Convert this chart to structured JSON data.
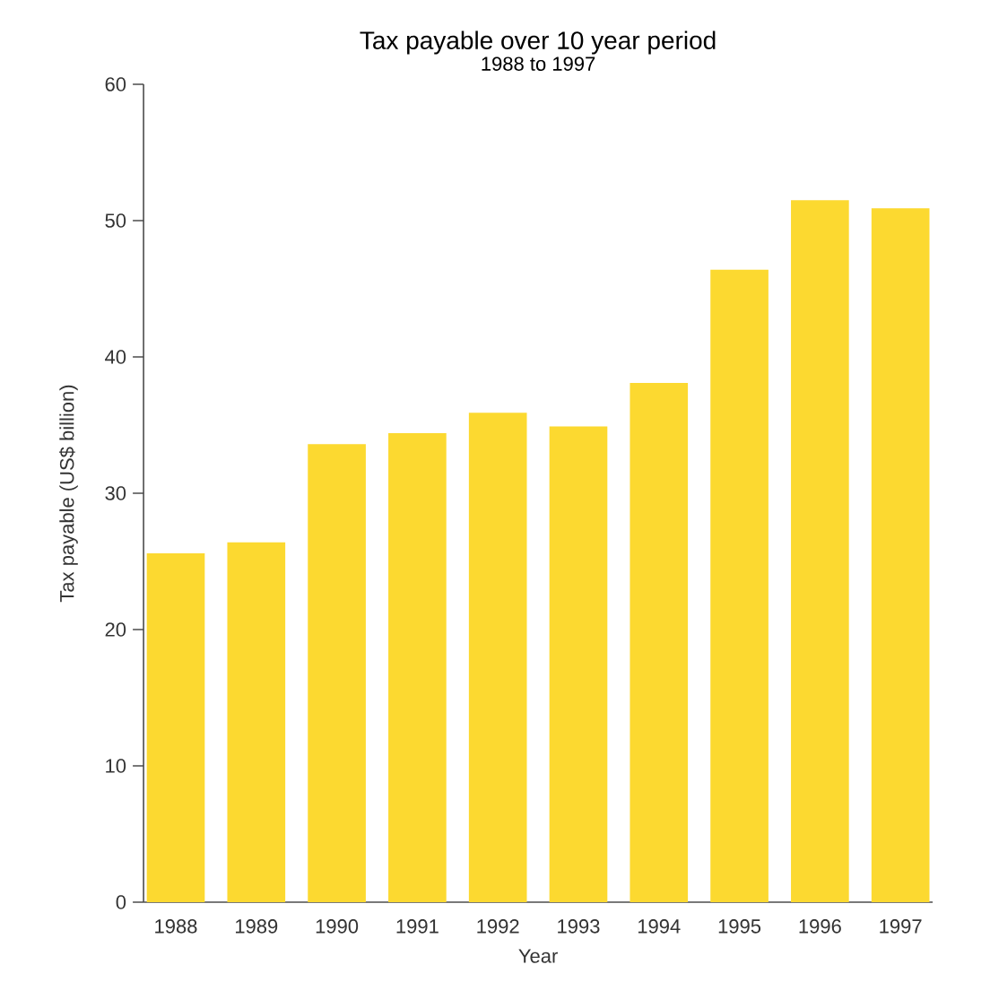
{
  "chart_data": {
    "type": "bar",
    "title": "Tax payable over 10 year period",
    "subtitle": "1988 to 1997",
    "xlabel": "Year",
    "ylabel": "Tax payable (US$ billion)",
    "categories": [
      "1988",
      "1989",
      "1990",
      "1991",
      "1992",
      "1993",
      "1994",
      "1995",
      "1996",
      "1997"
    ],
    "values": [
      25.6,
      26.4,
      33.6,
      34.4,
      35.9,
      34.9,
      38.1,
      46.4,
      51.5,
      50.9
    ],
    "color": "#fcd930",
    "ylim": [
      0,
      60
    ],
    "yticks": [
      0,
      10,
      20,
      30,
      40,
      50,
      60
    ]
  }
}
